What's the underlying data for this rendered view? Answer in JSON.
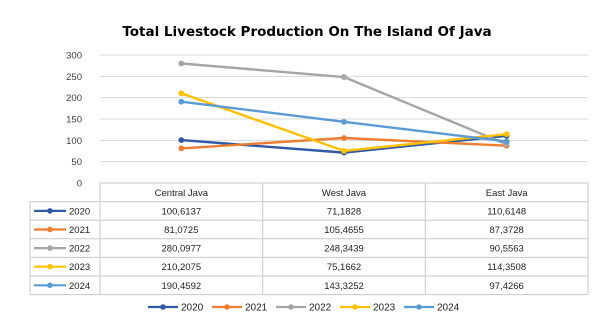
{
  "chart_data": {
    "type": "line",
    "title": "Total Livestock Production On The Island Of Java",
    "categories": [
      "Central Java",
      "West Java",
      "East Java"
    ],
    "ylim": [
      0,
      300
    ],
    "yticks": [
      "0",
      "50",
      "100",
      "150",
      "200",
      "250",
      "300"
    ],
    "grid": true,
    "legend_position": "bottom",
    "series": [
      {
        "name": "2020",
        "color": "#2e5aa8",
        "values": [
          100.6137,
          71.1828,
          110.6148
        ],
        "labels": [
          "100,6137",
          "71,1828",
          "110,6148"
        ]
      },
      {
        "name": "2021",
        "color": "#ed7d31",
        "values": [
          81.0725,
          105.4655,
          87.3728
        ],
        "labels": [
          "81,0725",
          "105,4655",
          "87,3728"
        ]
      },
      {
        "name": "2022",
        "color": "#a5a5a5",
        "values": [
          280.0977,
          248.3439,
          90.5563
        ],
        "labels": [
          "280,0977",
          "248,3439",
          "90,5563"
        ]
      },
      {
        "name": "2023",
        "color": "#ffc000",
        "values": [
          210.2075,
          75.1662,
          114.3508
        ],
        "labels": [
          "210,2075",
          "75,1662",
          "114,3508"
        ]
      },
      {
        "name": "2024",
        "color": "#5b9bd5",
        "values": [
          190.4592,
          143.3252,
          97.4266
        ],
        "labels": [
          "190,4592",
          "143,3252",
          "97,4266"
        ]
      }
    ]
  }
}
